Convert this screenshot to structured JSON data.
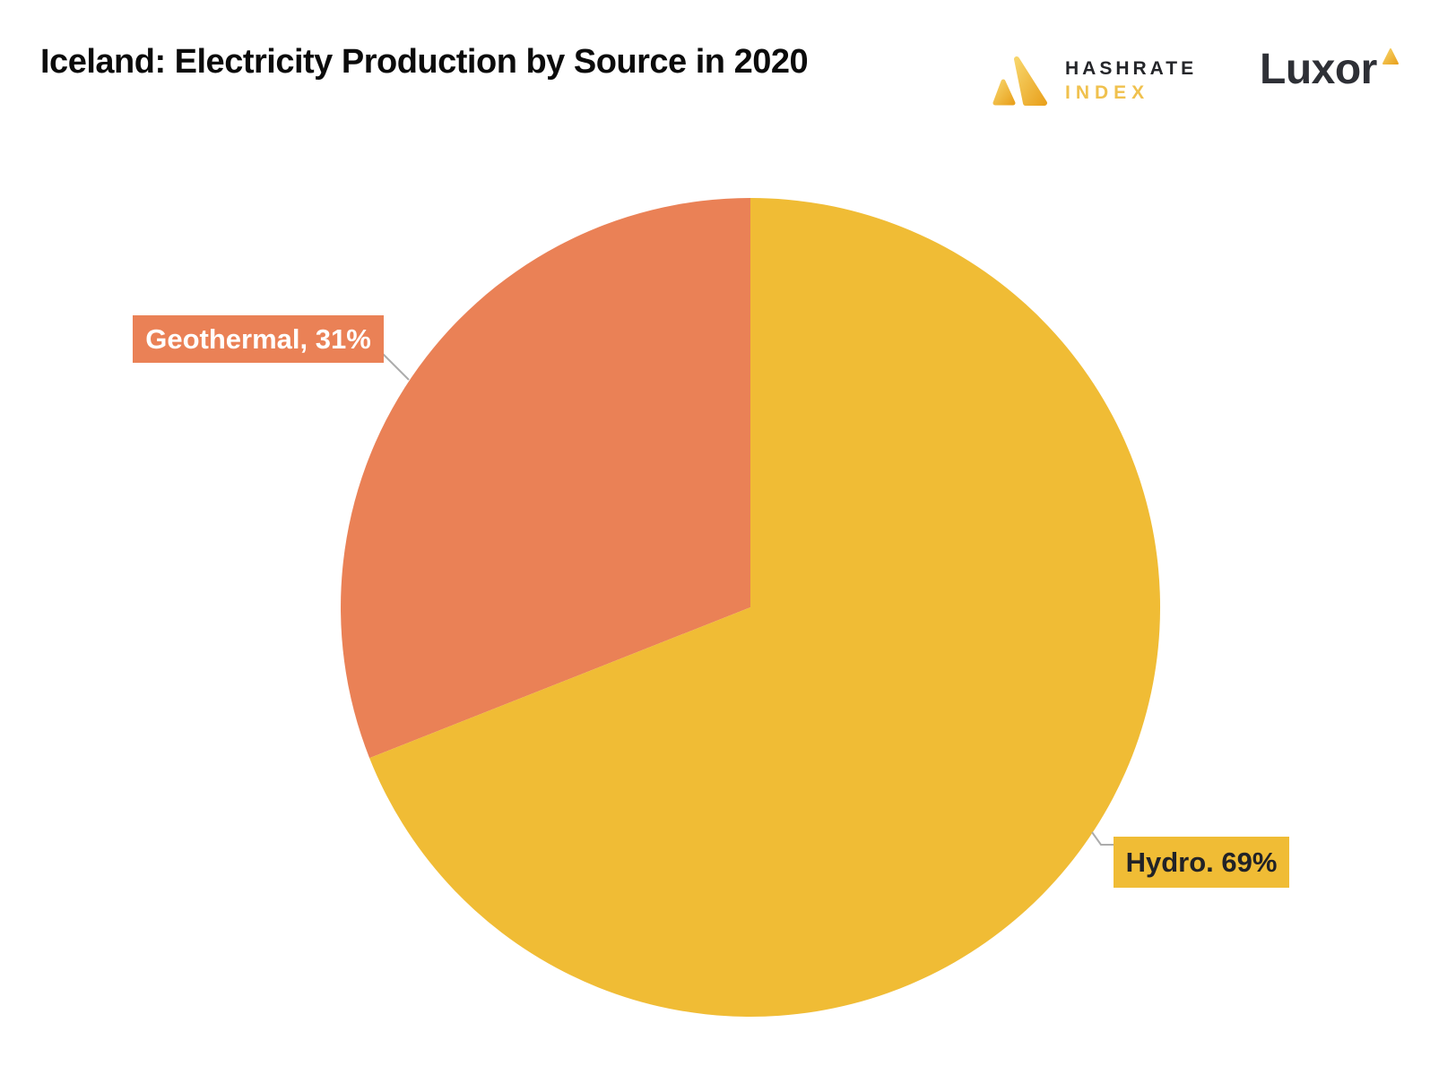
{
  "page": {
    "title": "Iceland: Electricity Production by Source in 2020"
  },
  "branding": {
    "hashrate_index": {
      "name": "Hashrate Index",
      "line1": "HASHRATE",
      "line2": "INDEX",
      "mark_color_light": "#f7d469",
      "mark_color_dark": "#e9a21f",
      "line1_color": "#25262a",
      "line2_color": "#f0c14e"
    },
    "luxor": {
      "wordmark": "Luxor",
      "text_color": "#2e3036",
      "mark_color": "#f0c14e"
    }
  },
  "chart_data": {
    "type": "pie",
    "title": "Iceland: Electricity Production by Source in 2020",
    "start_angle_deg": 0,
    "direction": "clockwise",
    "legend_position": "callout-labels",
    "slices": [
      {
        "label": "Hydro",
        "value": 69,
        "unit": "%",
        "color": "#f0bc35",
        "display_label": "Hydro. 69%",
        "label_text_color": "#212227"
      },
      {
        "label": "Geothermal",
        "value": 31,
        "unit": "%",
        "color": "#ea8156",
        "display_label": "Geothermal, 31%",
        "label_text_color": "#ffffff"
      }
    ],
    "leader_line_color": "#acacac"
  }
}
